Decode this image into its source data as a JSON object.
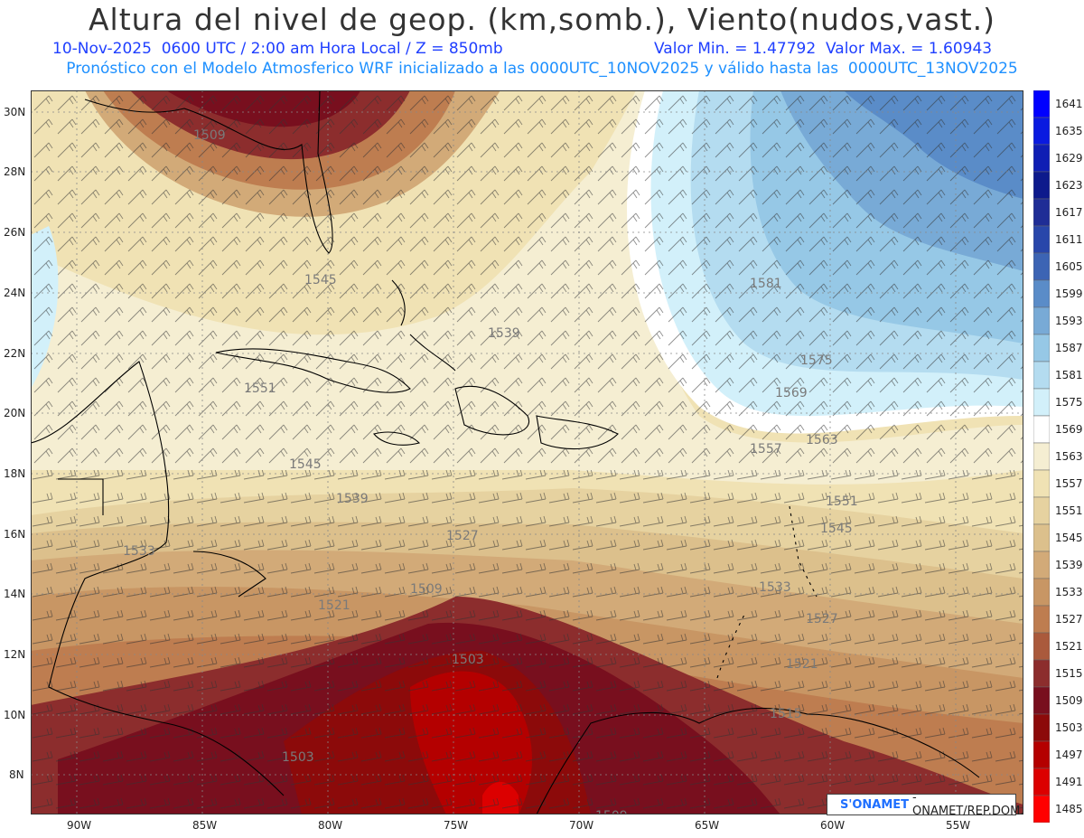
{
  "header": {
    "title": "Altura del nivel de geop. (km,somb.), Viento(nudos,vast.)",
    "line1_left": "10-Nov-2025  0600 UTC / 2:00 am Hora Local / Z = 850mb",
    "line1_right": "Valor Min. = 1.47792  Valor Max. = 1.60943",
    "line2": "Pronóstico con el Modelo Atmosferico WRF inicializado a las 0000UTC_10NOV2025 y válido hasta las  0000UTC_13NOV2025"
  },
  "axes": {
    "lat_labels": [
      "30N",
      "28N",
      "26N",
      "24N",
      "22N",
      "20N",
      "18N",
      "16N",
      "14N",
      "12N",
      "10N",
      "8N"
    ],
    "lon_labels": [
      "90W",
      "85W",
      "80W",
      "75W",
      "70W",
      "65W",
      "60W",
      "55W"
    ]
  },
  "colorbar": {
    "levels": [
      "1641",
      "1635",
      "1629",
      "1623",
      "1617",
      "1611",
      "1605",
      "1599",
      "1593",
      "1587",
      "1581",
      "1575",
      "1569",
      "1563",
      "1557",
      "1551",
      "1545",
      "1539",
      "1533",
      "1527",
      "1521",
      "1515",
      "1509",
      "1503",
      "1497",
      "1491",
      "1485"
    ],
    "colors": [
      "#0000ff",
      "#0a1ae0",
      "#0f1eb4",
      "#0d1a8c",
      "#1f2d96",
      "#2846aa",
      "#3c64b4",
      "#5a8cc8",
      "#78aad6",
      "#96c8e6",
      "#b4dcf0",
      "#d2f0fa",
      "#ffffff",
      "#f5eed2",
      "#f0e2b4",
      "#e6d2a0",
      "#dcc08c",
      "#d2aa78",
      "#c89664",
      "#be7d50",
      "#aa5a3c",
      "#8c2d2d",
      "#780f1e",
      "#8c0a0a",
      "#b40000",
      "#dc0000",
      "#ff0000"
    ]
  },
  "contour_labels": [
    "1509",
    "1545",
    "1551",
    "1545",
    "1539",
    "1533",
    "1527",
    "1521",
    "1509",
    "1503",
    "1503",
    "1509",
    "1581",
    "1575",
    "1569",
    "1563",
    "1557",
    "1551",
    "1545",
    "1527",
    "1521",
    "1515",
    "1533",
    "1539"
  ],
  "credit": {
    "logo": "S'ONAMET",
    "text": "- ONAMET/REP.DOM."
  },
  "palette": {
    "title_color": "#333333",
    "subtitle_blue": "#1f3fff",
    "subtitle_cyan": "#1e90ff"
  }
}
